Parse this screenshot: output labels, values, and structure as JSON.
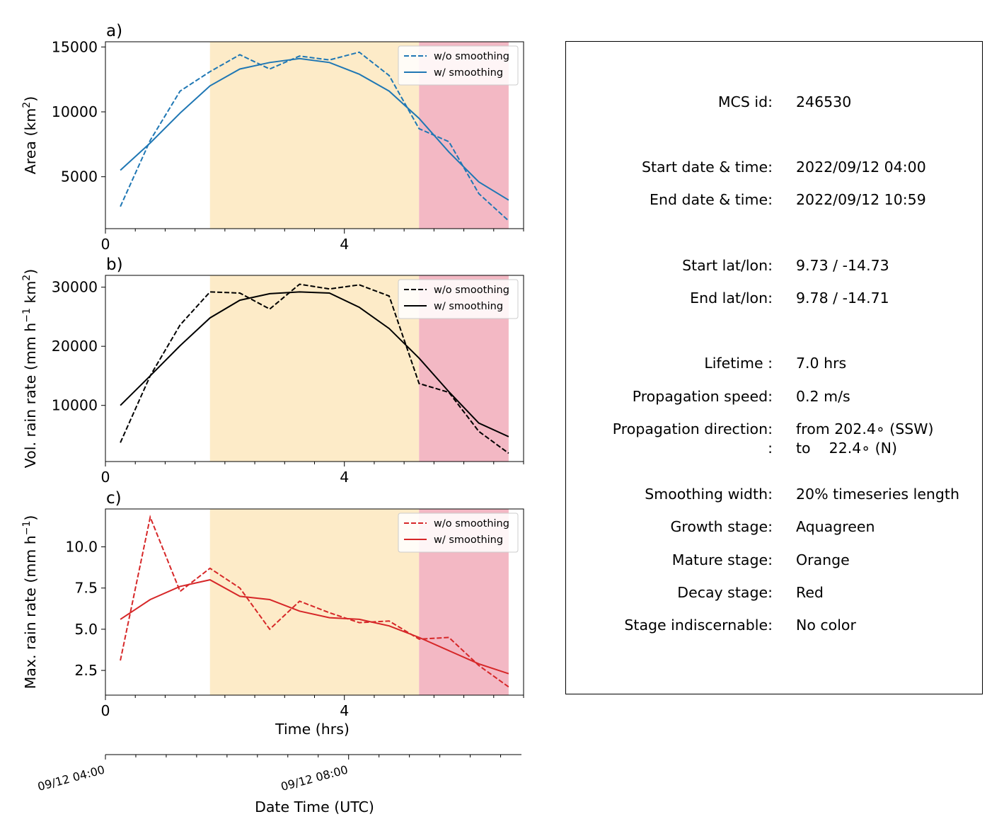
{
  "chart_data": [
    {
      "type": "line",
      "panel_label": "a)",
      "ylabel_main": "Area  (km",
      "ylabel_sup": "2",
      "ylabel_end": ")",
      "xlim": [
        0,
        7.0
      ],
      "ylim": [
        1000,
        15400
      ],
      "yticks": [
        5000,
        10000,
        15000
      ],
      "ytick_labels": [
        "5000",
        "10000",
        "15000"
      ],
      "xticks": [
        0,
        4
      ],
      "xtick_labels": [
        "0",
        "4"
      ],
      "color": "#1f77b4",
      "x": [
        0.25,
        0.75,
        1.25,
        1.75,
        2.25,
        2.75,
        3.25,
        3.75,
        4.25,
        4.75,
        5.25,
        5.75,
        6.25,
        6.75
      ],
      "series": [
        {
          "name": "w/o smoothing",
          "style": "dashed",
          "values": [
            2700,
            7800,
            11600,
            13100,
            14400,
            13300,
            14300,
            14000,
            14600,
            12800,
            8700,
            7700,
            3700,
            1600
          ]
        },
        {
          "name": "w/ smoothing",
          "style": "solid",
          "values": [
            5500,
            7600,
            9900,
            12000,
            13300,
            13800,
            14100,
            13800,
            12900,
            11600,
            9500,
            6900,
            4600,
            3200
          ]
        }
      ],
      "legend": "top-right"
    },
    {
      "type": "line",
      "panel_label": "b)",
      "ylabel_main": "Vol. rain rate (mm h",
      "ylabel_sup1": "−1",
      "ylabel_mid": " km",
      "ylabel_sup2": "2",
      "ylabel_end": ")",
      "xlim": [
        0,
        7.0
      ],
      "ylim": [
        500,
        32000
      ],
      "yticks": [
        10000,
        20000,
        30000
      ],
      "ytick_labels": [
        "10000",
        "20000",
        "30000"
      ],
      "xticks": [
        0,
        4
      ],
      "xtick_labels": [
        "0",
        "4"
      ],
      "color": "#000000",
      "x": [
        0.25,
        0.75,
        1.25,
        1.75,
        2.25,
        2.75,
        3.25,
        3.75,
        4.25,
        4.75,
        5.25,
        5.75,
        6.25,
        6.75
      ],
      "series": [
        {
          "name": "w/o smoothing",
          "style": "dashed",
          "values": [
            3700,
            15000,
            23600,
            29200,
            29000,
            26300,
            30500,
            29700,
            30400,
            28500,
            13700,
            12200,
            5600,
            1900
          ]
        },
        {
          "name": "w/ smoothing",
          "style": "solid",
          "values": [
            10000,
            15000,
            20100,
            24800,
            27800,
            28900,
            29200,
            29000,
            26600,
            23000,
            18000,
            12300,
            7000,
            4700
          ]
        }
      ],
      "legend": "top-right"
    },
    {
      "type": "line",
      "panel_label": "c)",
      "ylabel_main": "Max. rain rate  (mm h",
      "ylabel_sup": "−1",
      "ylabel_end": ")",
      "xlim": [
        0,
        7.0
      ],
      "ylim": [
        1.0,
        12.3
      ],
      "yticks": [
        2.5,
        5.0,
        7.5,
        10.0
      ],
      "ytick_labels": [
        "2.5",
        "5.0",
        "7.5",
        "10.0"
      ],
      "xticks": [
        0,
        4
      ],
      "xtick_labels": [
        "0",
        "4"
      ],
      "xlabel": "Time (hrs)",
      "color": "#d62728",
      "x": [
        0.25,
        0.75,
        1.25,
        1.75,
        2.25,
        2.75,
        3.25,
        3.75,
        4.25,
        4.75,
        5.25,
        5.75,
        6.25,
        6.75
      ],
      "series": [
        {
          "name": "w/o smoothing",
          "style": "dashed",
          "values": [
            3.1,
            11.8,
            7.3,
            8.7,
            7.5,
            5.0,
            6.7,
            6.0,
            5.4,
            5.5,
            4.4,
            4.5,
            2.8,
            1.5
          ]
        },
        {
          "name": "w/ smoothing",
          "style": "solid",
          "values": [
            5.6,
            6.8,
            7.6,
            8.0,
            7.0,
            6.8,
            6.1,
            5.7,
            5.6,
            5.2,
            4.5,
            3.7,
            2.9,
            2.3
          ]
        }
      ],
      "legend": "top-right"
    }
  ],
  "stages": [
    {
      "name": "Mature stage",
      "from": 1.75,
      "to": 5.25,
      "color": "#fdebc8"
    },
    {
      "name": "Decay stage",
      "from": 5.25,
      "to": 6.75,
      "color": "#f3b8c4"
    }
  ],
  "datetime_axis": {
    "xlabel": "Date Time (UTC)",
    "ticks": [
      0,
      4
    ],
    "tick_labels": [
      "09/12 04:00",
      "09/12 08:00"
    ]
  },
  "info": [
    {
      "label": "MCS id:",
      "value": "246530"
    },
    {
      "label": "Start date & time:",
      "value": "2022/09/12 04:00"
    },
    {
      "label": "End date & time:",
      "value": "2022/09/12 10:59"
    },
    {
      "label": "Start lat/lon:",
      "value": "9.73 / -14.73"
    },
    {
      "label": "End lat/lon:",
      "value": "9.78 / -14.71"
    },
    {
      "label": "Lifetime :",
      "value": "7.0 hrs"
    },
    {
      "label": "Propagation speed:",
      "value": "0.2 m/s"
    },
    {
      "label": "Propagation direction:",
      "value": "from 202.4∘ (SSW)"
    },
    {
      "label": ":",
      "value": "to    22.4∘ (N)"
    },
    {
      "label": "Smoothing width:",
      "value": "20% timeseries length"
    },
    {
      "label": "Growth stage:",
      "value": "Aquagreen"
    },
    {
      "label": "Mature stage:",
      "value": "Orange"
    },
    {
      "label": "Decay stage:",
      "value": "Red"
    },
    {
      "label": "Stage indiscernable:",
      "value": "No color"
    }
  ]
}
